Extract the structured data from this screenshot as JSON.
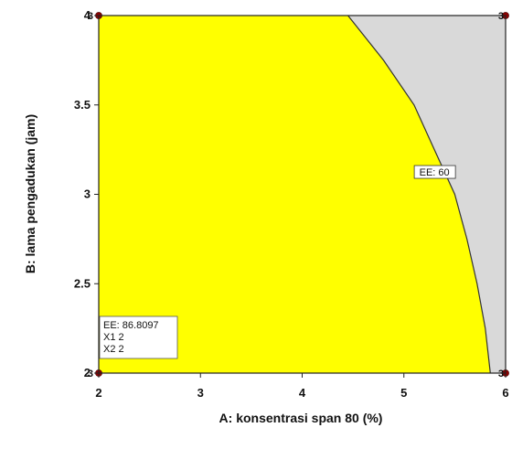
{
  "chart_data": {
    "type": "contour",
    "xlabel": "A: konsentrasi span 80 (%)",
    "ylabel": "B: lama pengadukan (jam)",
    "xlim": [
      2,
      6
    ],
    "ylim": [
      2,
      4
    ],
    "x_ticks": [
      "2",
      "3",
      "4",
      "5",
      "6"
    ],
    "y_ticks": [
      "2",
      "2.5",
      "3",
      "3.5",
      "4"
    ],
    "contour": {
      "label": "EE: 60",
      "level": 60,
      "points": [
        [
          4.45,
          4.0
        ],
        [
          4.8,
          3.75
        ],
        [
          5.1,
          3.5
        ],
        [
          5.3,
          3.25
        ],
        [
          5.5,
          3.0
        ],
        [
          5.62,
          2.75
        ],
        [
          5.72,
          2.5
        ],
        [
          5.8,
          2.25
        ],
        [
          5.85,
          2.0
        ]
      ]
    },
    "regions": [
      {
        "name": "feasible",
        "color": "#ffff00"
      },
      {
        "name": "infeasible",
        "color": "#d9d9d9"
      }
    ],
    "design_points": [
      {
        "x": 2,
        "y": 4,
        "label": "3"
      },
      {
        "x": 6,
        "y": 4,
        "label": "3"
      },
      {
        "x": 2,
        "y": 2,
        "label": "3"
      },
      {
        "x": 6,
        "y": 2,
        "label": "3"
      }
    ],
    "flag": {
      "x": 2,
      "y": 2,
      "lines": [
        "EE:  86.8097",
        "X1  2",
        "X2  2"
      ]
    },
    "contour_label_position": {
      "x": 5.3,
      "y": 3.12
    },
    "grid": false,
    "point_color": "#8b0000"
  }
}
